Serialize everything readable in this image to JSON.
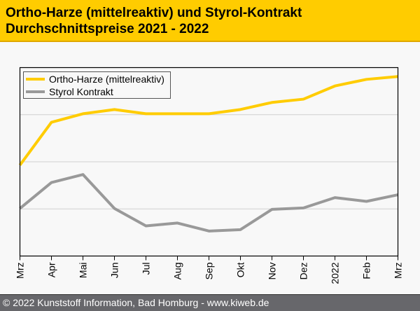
{
  "header": {
    "title_line1": "Ortho-Harze (mittelreaktiv) und Styrol-Kontrakt",
    "title_line2": "Durchschnittspreise 2021 - 2022"
  },
  "footer": {
    "text": "© 2022 Kunststoff Information, Bad Homburg - www.kiweb.de"
  },
  "chart_data": {
    "type": "line",
    "title": "",
    "xlabel": "",
    "ylabel": "",
    "categories": [
      "Mrz",
      "Apr",
      "Mai",
      "Jun",
      "Jul",
      "Aug",
      "Sep",
      "Okt",
      "Nov",
      "Dez",
      "2022",
      "Feb",
      "Mrz"
    ],
    "ylim": [
      0,
      4
    ],
    "y_tick_labels_shown": false,
    "grid": true,
    "legend_position": "top-left",
    "series": [
      {
        "name": "Ortho-Harze (mittelreaktiv)",
        "color": "#ffcc00",
        "values": [
          1.93,
          2.84,
          3.02,
          3.11,
          3.02,
          3.02,
          3.02,
          3.11,
          3.26,
          3.33,
          3.61,
          3.75,
          3.81
        ]
      },
      {
        "name": "Styrol Kontrakt",
        "color": "#999999",
        "values": [
          1.01,
          1.56,
          1.73,
          1.01,
          0.64,
          0.7,
          0.53,
          0.56,
          0.99,
          1.02,
          1.24,
          1.16,
          1.3
        ]
      }
    ]
  }
}
